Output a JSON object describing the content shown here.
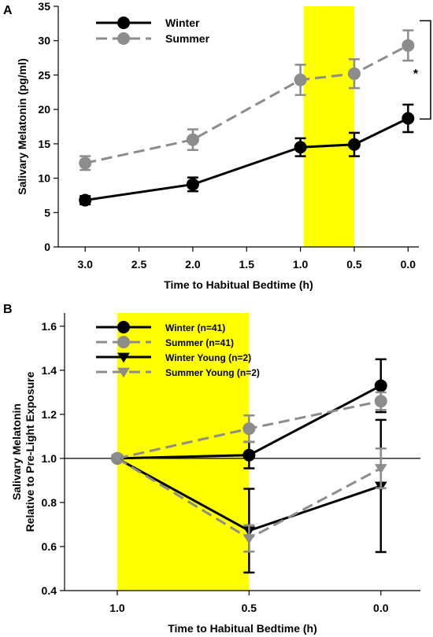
{
  "chart_data": [
    {
      "panel": "A",
      "type": "line",
      "title": "",
      "xlabel": "Time to Habitual Bedtime (h)",
      "ylabel": "Salivary Melatonin  (pg/ml)",
      "x": [
        3.0,
        2.0,
        1.0,
        0.5,
        0.0
      ],
      "x_ticks": [
        "3.0",
        "2.5",
        "2.0",
        "1.5",
        "1.0",
        "0.5",
        "0.0"
      ],
      "y_ticks": [
        "0",
        "5",
        "10",
        "15",
        "20",
        "25",
        "30",
        "35"
      ],
      "xlim": [
        3.25,
        -0.1
      ],
      "ylim": [
        0,
        35
      ],
      "highlight": {
        "from": 0.97,
        "to": 0.5,
        "color": "#ffff00"
      },
      "significance": "*",
      "series": [
        {
          "name": "Winter",
          "color": "#000000",
          "dashed": false,
          "marker": "circle",
          "values": [
            6.8,
            9.1,
            14.5,
            14.9,
            18.7
          ],
          "errors": [
            0.6,
            1.0,
            1.3,
            1.7,
            2.0
          ]
        },
        {
          "name": "Summer",
          "color": "#8c8c8c",
          "dashed": true,
          "marker": "circle",
          "values": [
            12.2,
            15.6,
            24.3,
            25.2,
            29.3
          ],
          "errors": [
            1.0,
            1.5,
            2.2,
            2.1,
            2.2
          ]
        }
      ],
      "legend": "top-left",
      "grid": false
    },
    {
      "panel": "B",
      "type": "line",
      "title": "",
      "xlabel": "Time to Habitual Bedtime (h)",
      "ylabel": "Salivary Melatonin Relative to Pre-Light Exposure",
      "ylabel_lines": [
        "Salivary Melatonin",
        "Relative to Pre-Light Exposure"
      ],
      "x": [
        1.0,
        0.5,
        0.0
      ],
      "x_ticks": [
        "1.0",
        "0.5",
        "0.0"
      ],
      "y_ticks": [
        "0.4",
        "0.6",
        "0.8",
        "1.0",
        "1.2",
        "1.4",
        "1.6"
      ],
      "xlim": [
        1.2,
        -0.15
      ],
      "ylim": [
        0.4,
        1.66
      ],
      "highlight": {
        "from": 1.0,
        "to": 0.5,
        "color": "#ffff00"
      },
      "reference_line": 1.0,
      "series": [
        {
          "name": "Winter (n=41)",
          "color": "#000000",
          "dashed": false,
          "marker": "circle",
          "values": [
            1.0,
            1.015,
            1.33
          ],
          "errors": [
            0,
            0.06,
            0.12
          ]
        },
        {
          "name": "Summer (n=41)",
          "color": "#8c8c8c",
          "dashed": true,
          "marker": "circle",
          "values": [
            1.0,
            1.135,
            1.26
          ],
          "errors": [
            0,
            0.06,
            0.04
          ]
        },
        {
          "name": "Winter Young (n=2)",
          "color": "#000000",
          "dashed": false,
          "marker": "triangle-down",
          "values": [
            1.0,
            0.672,
            0.875
          ],
          "errors": [
            0,
            0.19,
            0.3
          ]
        },
        {
          "name": "Summer Young (n=2)",
          "color": "#8c8c8c",
          "dashed": true,
          "marker": "triangle-down",
          "values": [
            1.0,
            0.637,
            0.955
          ],
          "errors": [
            0,
            0.06,
            0.09
          ]
        }
      ],
      "legend": "top-left",
      "grid": false
    }
  ]
}
